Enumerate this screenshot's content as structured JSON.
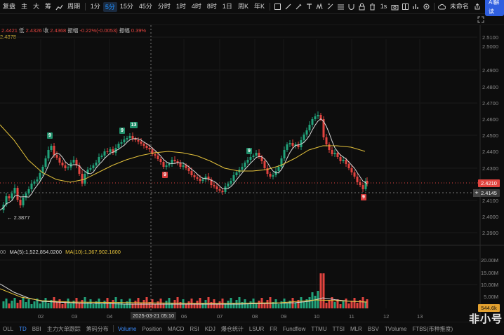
{
  "toolbar": {
    "items": [
      {
        "label": "复盘"
      },
      {
        "label": "主"
      },
      {
        "label": "大"
      },
      {
        "label": "筹"
      }
    ],
    "period_label": "周期",
    "intervals": [
      "1分",
      "5分",
      "15分",
      "45分",
      "分时",
      "1时",
      "4时",
      "8时",
      "1日",
      "周K",
      "年K"
    ],
    "active_interval": "5分",
    "right_interval": "1s",
    "unnamed": "未命名",
    "ai_label": "AI解读"
  },
  "ohlc": {
    "high_part": "2.4421",
    "low_label": "低",
    "low_value": "2.4326",
    "close_label": "收",
    "close_value": "2.4368",
    "change_label": "振幅",
    "change_value": "-0.22%(-0.0053)",
    "amp_label": "振幅",
    "amp_value": "0.39%"
  },
  "ma_info": "2.4378",
  "vol_info": {
    "prefix": "00",
    "ma5": "MA(5):1,522,854.0200",
    "ma10": "MA(10):1,367,902.1600"
  },
  "y_axis": [
    "2.5100",
    "2.5000",
    "2.4900",
    "2.4800",
    "2.4700",
    "2.4600",
    "2.4500",
    "2.4400",
    "2.4300",
    "2.4100",
    "2.4000",
    "2.3900"
  ],
  "vol_axis": [
    "20.00M",
    "15.00M",
    "10.00M",
    "5.00M"
  ],
  "price_tag_current": "2.4210",
  "price_tag_cross": "2.4145",
  "vol_tag": "544.6k",
  "min_marker": "← 2.3877",
  "td_labels": [
    {
      "t": "9",
      "kind": "g"
    },
    {
      "t": "9",
      "kind": "g"
    },
    {
      "t": "13",
      "kind": "g"
    },
    {
      "t": "9",
      "kind": "r"
    },
    {
      "t": "9",
      "kind": "g"
    },
    {
      "t": "9",
      "kind": "r"
    }
  ],
  "x_axis": [
    "02",
    "03",
    "04",
    "06",
    "07",
    "08",
    "09",
    "10",
    "11",
    "12",
    "13"
  ],
  "time_tag": "2025-03-21 05:10",
  "bottom_tabs": [
    "OLL",
    "TD",
    "BBI",
    "主力大单跟踪",
    "筹码分布",
    "Volume",
    "Position",
    "MACD",
    "RSI",
    "KDJ",
    "爆仓统计",
    "LSUR",
    "FR",
    "Fundflow",
    "TTMU",
    "TTSI",
    "MLR",
    "BSV",
    "TVolume",
    "FTBS(币种推度)"
  ],
  "bottom_active": [
    "TD",
    "Volume"
  ],
  "watermark": "非小号",
  "colors": {
    "up": "#21a37a",
    "down": "#e2443f",
    "ma_fast": "#d9d9d9",
    "ma_slow": "#e3c13b",
    "accent": "#1e90ff"
  },
  "chart_data": {
    "type": "candlestick",
    "title": "",
    "y_range": [
      2.385,
      2.515
    ],
    "current_price": 2.421,
    "cross_price": 2.4145,
    "low_marker": 2.3877,
    "volume_axis_max": "20.00M"
  }
}
